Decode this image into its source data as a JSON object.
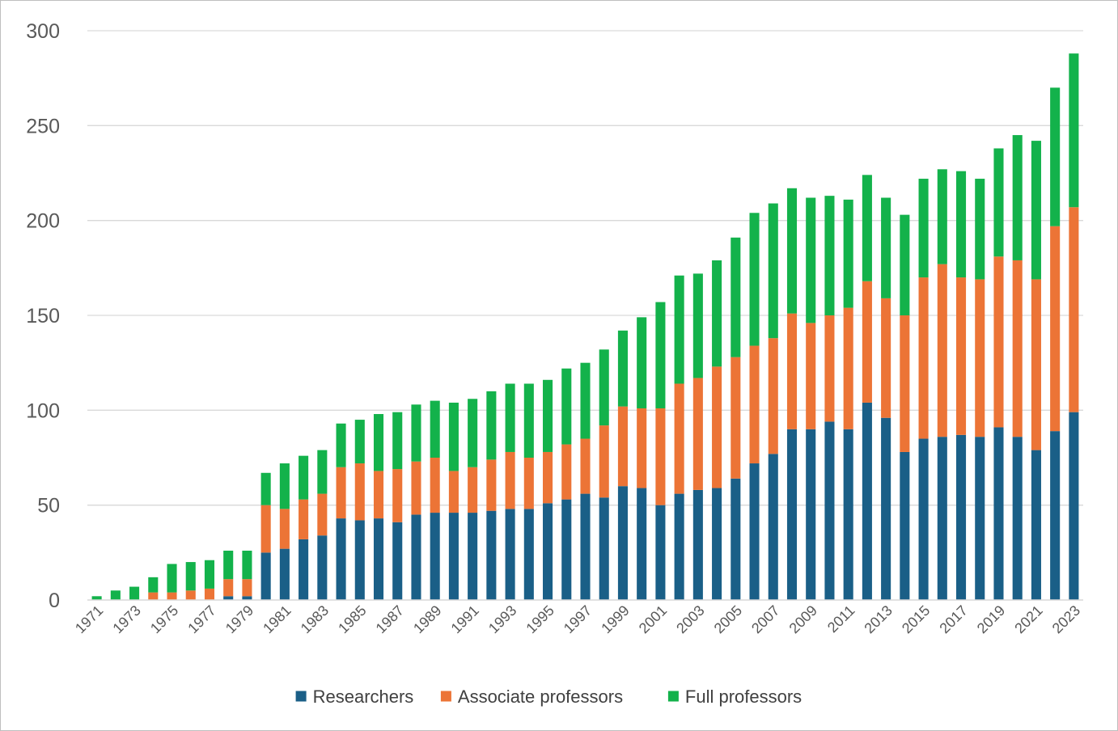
{
  "chart_data": {
    "type": "bar",
    "stacked": true,
    "title": "",
    "xlabel": "",
    "ylabel": "",
    "ylim": [
      0,
      300
    ],
    "yticks": [
      0,
      50,
      100,
      150,
      200,
      250,
      300
    ],
    "grid": true,
    "legend_position": "bottom",
    "categories": [
      "1971",
      "1972",
      "1973",
      "1974",
      "1975",
      "1976",
      "1977",
      "1978",
      "1979",
      "1980",
      "1981",
      "1982",
      "1983",
      "1984",
      "1985",
      "1986",
      "1987",
      "1988",
      "1989",
      "1990",
      "1991",
      "1992",
      "1993",
      "1994",
      "1995",
      "1996",
      "1997",
      "1998",
      "1999",
      "2000",
      "2001",
      "2002",
      "2003",
      "2004",
      "2005",
      "2006",
      "2007",
      "2008",
      "2009",
      "2010",
      "2011",
      "2012",
      "2013",
      "2014",
      "2015",
      "2016",
      "2017",
      "2018",
      "2019",
      "2020",
      "2021",
      "2022",
      "2023"
    ],
    "series": [
      {
        "name": "Researchers",
        "color": "#1a5f87",
        "values": [
          0,
          0,
          0,
          0,
          0,
          0,
          0,
          2,
          2,
          25,
          27,
          32,
          34,
          43,
          42,
          43,
          41,
          45,
          46,
          46,
          46,
          47,
          48,
          48,
          51,
          53,
          56,
          54,
          60,
          59,
          50,
          56,
          58,
          59,
          64,
          72,
          77,
          90,
          90,
          94,
          90,
          104,
          96,
          78,
          85,
          86,
          87,
          86,
          91,
          86,
          79,
          89,
          99
        ]
      },
      {
        "name": "Associate professors",
        "color": "#ec7436",
        "values": [
          0,
          0,
          0,
          4,
          4,
          5,
          6,
          9,
          9,
          25,
          21,
          21,
          22,
          27,
          30,
          25,
          28,
          28,
          29,
          22,
          24,
          27,
          30,
          27,
          27,
          29,
          29,
          38,
          42,
          42,
          51,
          58,
          59,
          64,
          64,
          62,
          61,
          61,
          56,
          56,
          64,
          64,
          63,
          72,
          85,
          91,
          83,
          83,
          90,
          93,
          90,
          108,
          108
        ]
      },
      {
        "name": "Full professors",
        "color": "#13b24b",
        "values": [
          2,
          5,
          7,
          8,
          15,
          15,
          15,
          15,
          15,
          17,
          24,
          23,
          23,
          23,
          23,
          30,
          30,
          30,
          30,
          36,
          36,
          36,
          36,
          39,
          38,
          40,
          40,
          40,
          40,
          48,
          56,
          57,
          55,
          56,
          63,
          70,
          71,
          66,
          66,
          63,
          57,
          56,
          53,
          53,
          52,
          50,
          56,
          53,
          57,
          66,
          73,
          73,
          81
        ]
      }
    ]
  }
}
